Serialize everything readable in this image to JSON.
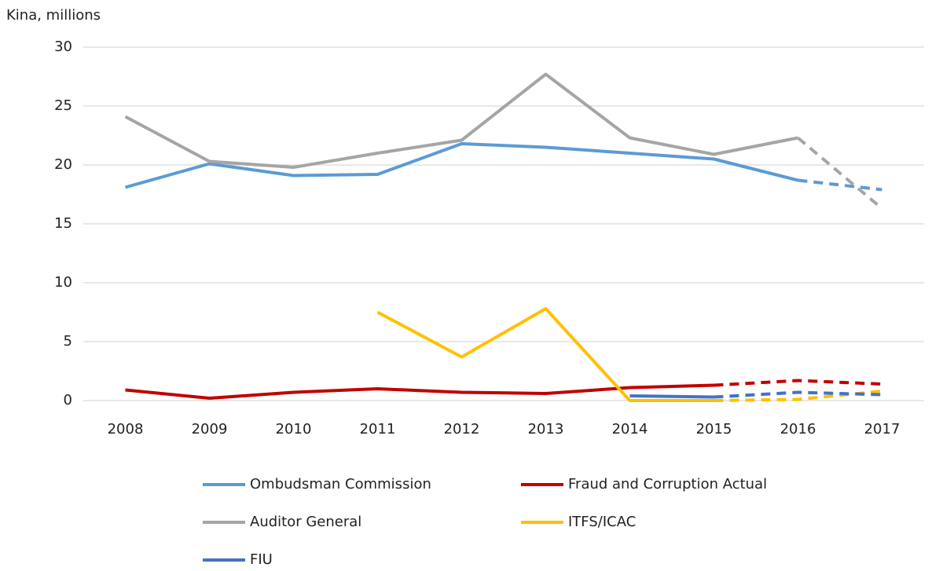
{
  "chart_data": {
    "type": "line",
    "y_axis_label": "Kina, millions",
    "categories": [
      "2008",
      "2009",
      "2010",
      "2011",
      "2012",
      "2013",
      "2014",
      "2015",
      "2016",
      "2017"
    ],
    "ylim": [
      0,
      30
    ],
    "yticks": [
      0,
      5,
      10,
      15,
      20,
      25,
      30
    ],
    "grid": true,
    "series": [
      {
        "name": "Ombudsman Commission",
        "color": "#5b9bd5",
        "dashed_from": "2016",
        "values": [
          18.1,
          20.1,
          19.1,
          19.2,
          21.8,
          21.5,
          21.0,
          20.5,
          18.7,
          17.9
        ]
      },
      {
        "name": "Fraud and Corruption Actual",
        "color": "#c00000",
        "dashed_from": "2015",
        "values": [
          0.9,
          0.2,
          0.7,
          1.0,
          0.7,
          0.6,
          1.1,
          1.3,
          1.7,
          1.4
        ]
      },
      {
        "name": "Auditor General",
        "color": "#a5a5a5",
        "dashed_from": "2016",
        "values": [
          24.1,
          20.3,
          19.8,
          21.0,
          22.1,
          27.7,
          22.3,
          20.9,
          22.3,
          16.3
        ]
      },
      {
        "name": "ITFS/ICAC",
        "color": "#ffc000",
        "dashed_from": "2015",
        "values": [
          null,
          null,
          null,
          7.5,
          3.7,
          7.8,
          0.0,
          0.0,
          0.1,
          0.8
        ]
      },
      {
        "name": "FIU",
        "color": "#4472c4",
        "dashed_from": "2015",
        "values": [
          null,
          null,
          null,
          null,
          null,
          null,
          0.4,
          0.3,
          0.7,
          0.5
        ]
      }
    ]
  }
}
